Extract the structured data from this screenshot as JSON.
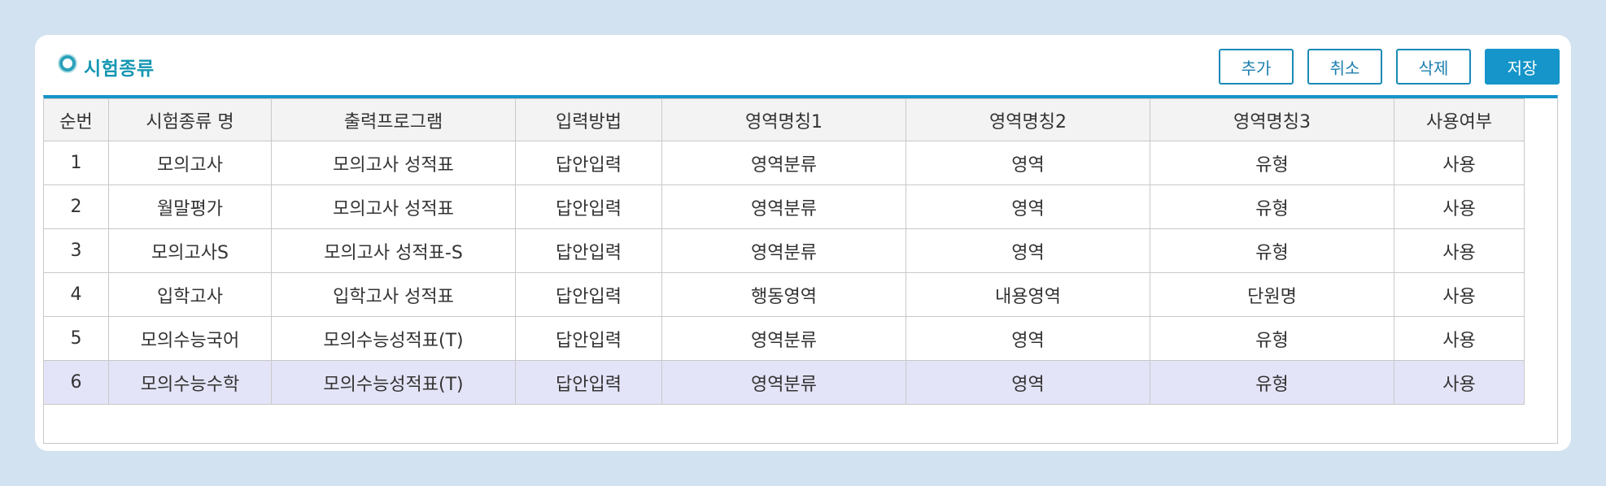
{
  "panel": {
    "title": "시험종류",
    "buttons": {
      "add": "추가",
      "cancel": "취소",
      "delete": "삭제",
      "save": "저장"
    }
  },
  "table": {
    "columns": [
      "순번",
      "시험종류 명",
      "출력프로그램",
      "입력방법",
      "영역명칭1",
      "영역명칭2",
      "영역명칭3",
      "사용여부"
    ],
    "rows": [
      [
        "1",
        "모의고사",
        "모의고사 성적표",
        "답안입력",
        "영역분류",
        "영역",
        "유형",
        "사용"
      ],
      [
        "2",
        "월말평가",
        "모의고사 성적표",
        "답안입력",
        "영역분류",
        "영역",
        "유형",
        "사용"
      ],
      [
        "3",
        "모의고사S",
        "모의고사 성적표-S",
        "답안입력",
        "영역분류",
        "영역",
        "유형",
        "사용"
      ],
      [
        "4",
        "입학고사",
        "입학고사 성적표",
        "답안입력",
        "행동영역",
        "내용영역",
        "단원명",
        "사용"
      ],
      [
        "5",
        "모의수능국어",
        "모의수능성적표(T)",
        "답안입력",
        "영역분류",
        "영역",
        "유형",
        "사용"
      ],
      [
        "6",
        "모의수능수학",
        "모의수능성적표(T)",
        "답안입력",
        "영역분류",
        "영역",
        "유형",
        "사용"
      ]
    ],
    "selected_row": "6"
  },
  "colors": {
    "accent": "#1595c9",
    "title": "#1597b2",
    "selected_row": "#e4e4f8",
    "background": "#d2e2f1"
  }
}
